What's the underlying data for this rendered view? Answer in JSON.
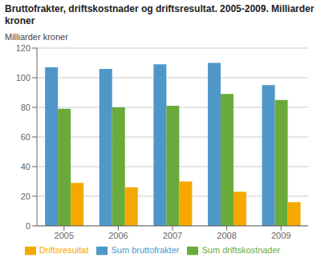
{
  "chart_data": {
    "type": "bar",
    "title": "Bruttofrakter, driftskostnader og driftsresultat. 2005-2009. Milliarder kroner",
    "ylabel": "Milliarder kroner",
    "categories": [
      "2005",
      "2006",
      "2007",
      "2008",
      "2009"
    ],
    "series": [
      {
        "name": "Sum bruttofrakter",
        "color": "#4f97c8",
        "values": [
          107,
          106,
          109,
          110,
          95
        ]
      },
      {
        "name": "Sum driftskostnader",
        "color": "#6aaa3a",
        "values": [
          79,
          80,
          81,
          89,
          85
        ]
      },
      {
        "name": "Driftsresultat",
        "color": "#f5a800",
        "values": [
          29,
          26,
          30,
          23,
          16
        ]
      }
    ],
    "ylim": [
      0,
      120
    ],
    "yticks": [
      0,
      20,
      40,
      60,
      80,
      100,
      120
    ],
    "grid": true,
    "legend": "bottom"
  }
}
